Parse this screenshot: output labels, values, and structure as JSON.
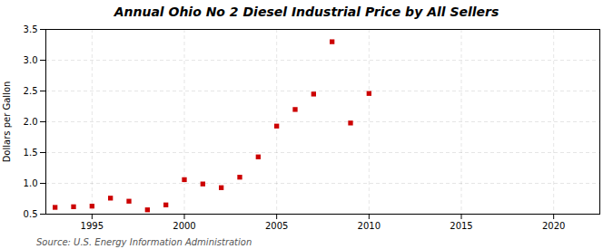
{
  "chart_data": {
    "type": "scatter",
    "title": "Annual Ohio No 2 Diesel Industrial Price by All Sellers",
    "ylabel": "Dollars per Gallon",
    "source": "Source: U.S. Energy Information Administration",
    "x": [
      1993,
      1994,
      1995,
      1996,
      1997,
      1998,
      1999,
      2000,
      2001,
      2002,
      2003,
      2004,
      2005,
      2006,
      2007,
      2008,
      2009,
      2010
    ],
    "values": [
      0.61,
      0.62,
      0.63,
      0.76,
      0.71,
      0.57,
      0.65,
      1.06,
      0.99,
      0.93,
      1.1,
      1.43,
      1.93,
      2.2,
      2.45,
      3.3,
      1.98,
      2.46
    ],
    "color": "#cc0000",
    "marker": "square",
    "xlim": [
      1992.5,
      2022.5
    ],
    "xticks": [
      1995,
      2000,
      2005,
      2010,
      2015,
      2020
    ],
    "ylim": [
      0.5,
      3.5
    ],
    "yticks": [
      0.5,
      {
        "value": 1.0,
        "label": "1.0"
      },
      1.5,
      {
        "value": 2.0,
        "label": "2.0"
      },
      2.5,
      {
        "value": 3.0,
        "label": "3.0"
      },
      3.5
    ],
    "grid": true
  }
}
